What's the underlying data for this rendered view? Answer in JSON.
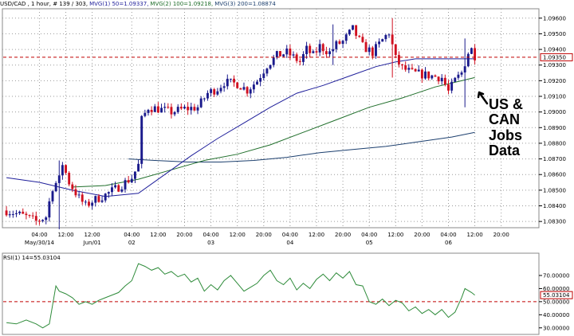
{
  "header": {
    "symbol": "USD/CAD , 1 hour, # 139 / 303,",
    "ma1": "MVG(1) 50=1.09337,",
    "ma2": "MVG(2) 100=1.09218,",
    "ma3": "MVG(3) 200=1.08874"
  },
  "colors": {
    "up": "#1a1a8c",
    "down": "#d01020",
    "ma1": "#1e1e9a",
    "ma2": "#1f6e2a",
    "ma3": "#1c3f6e",
    "rsi": "#2e8b3a",
    "marker": "#c00000",
    "grid": "#9a9a9a"
  },
  "annotation": {
    "lines": [
      "US &",
      "CAN",
      "Jobs",
      "Data"
    ]
  },
  "chart_data": [
    {
      "type": "candlestick",
      "y_ticks": [
        "1.09600",
        "1.09500",
        "1.09400",
        "1.09300",
        "1.09200",
        "1.09100",
        "1.09000",
        "1.08900",
        "1.08800",
        "1.08700",
        "1.08600",
        "1.08500",
        "1.08400",
        "1.08300"
      ],
      "ylim": [
        1.0826,
        1.0966
      ],
      "x_ticks": [
        {
          "bar": 10,
          "time": "04:00",
          "date": "May/30/14"
        },
        {
          "bar": 18,
          "time": "12:00",
          "date": ""
        },
        {
          "bar": 26,
          "time": "12:00",
          "date": "Jun/01"
        },
        {
          "bar": 38,
          "time": "04:00",
          "date": "02"
        },
        {
          "bar": 46,
          "time": "12:00",
          "date": ""
        },
        {
          "bar": 54,
          "time": "20:00",
          "date": ""
        },
        {
          "bar": 62,
          "time": "04:00",
          "date": "03"
        },
        {
          "bar": 70,
          "time": "12:00",
          "date": ""
        },
        {
          "bar": 78,
          "time": "20:00",
          "date": ""
        },
        {
          "bar": 86,
          "time": "04:00",
          "date": "04"
        },
        {
          "bar": 94,
          "time": "12:00",
          "date": ""
        },
        {
          "bar": 102,
          "time": "20:00",
          "date": ""
        },
        {
          "bar": 110,
          "time": "04:00",
          "date": "05"
        },
        {
          "bar": 118,
          "time": "12:00",
          "date": ""
        },
        {
          "bar": 126,
          "time": "20:00",
          "date": ""
        },
        {
          "bar": 134,
          "time": "04:00",
          "date": "06"
        },
        {
          "bar": 142,
          "time": "12:00",
          "date": ""
        },
        {
          "bar": 150,
          "time": "20:00",
          "date": ""
        }
      ],
      "current_price": 1.0935,
      "current_price_label": "1.09350",
      "close_path": [
        [
          0,
          1.0837
        ],
        [
          6,
          1.0833
        ],
        [
          9,
          1.083
        ],
        [
          12,
          1.0833
        ],
        [
          14,
          1.0852
        ],
        [
          16,
          1.0857
        ],
        [
          17,
          1.0867
        ],
        [
          19,
          1.0855
        ],
        [
          22,
          1.0845
        ],
        [
          24,
          1.084
        ],
        [
          26,
          1.0843
        ],
        [
          30,
          1.0847
        ],
        [
          34,
          1.0852
        ],
        [
          38,
          1.0858
        ],
        [
          40,
          1.0866
        ],
        [
          41,
          1.0895
        ],
        [
          43,
          1.0903
        ],
        [
          46,
          1.0902
        ],
        [
          50,
          1.09
        ],
        [
          54,
          1.0902
        ],
        [
          58,
          1.0903
        ],
        [
          61,
          1.0912
        ],
        [
          64,
          1.0915
        ],
        [
          66,
          1.0919
        ],
        [
          70,
          1.0918
        ],
        [
          73,
          1.0914
        ],
        [
          76,
          1.092
        ],
        [
          79,
          1.093
        ],
        [
          82,
          1.0936
        ],
        [
          85,
          1.0938
        ],
        [
          87,
          1.0935
        ],
        [
          89,
          1.0932
        ],
        [
          91,
          1.094
        ],
        [
          93,
          1.0936
        ],
        [
          95,
          1.0942
        ],
        [
          98,
          1.0938
        ],
        [
          100,
          1.0943
        ],
        [
          102,
          1.0945
        ],
        [
          105,
          1.0953
        ],
        [
          108,
          1.0942
        ],
        [
          111,
          1.0938
        ],
        [
          114,
          1.0946
        ],
        [
          116,
          1.0951
        ],
        [
          118,
          1.0934
        ],
        [
          120,
          1.0928
        ],
        [
          123,
          1.0925
        ],
        [
          126,
          1.0924
        ],
        [
          129,
          1.0923
        ],
        [
          132,
          1.0922
        ],
        [
          134,
          1.0913
        ],
        [
          136,
          1.092
        ],
        [
          138,
          1.0925
        ],
        [
          140,
          1.0938
        ],
        [
          141,
          1.094
        ],
        [
          142,
          1.0936
        ]
      ],
      "ma1_path": [
        [
          0,
          1.0858
        ],
        [
          10,
          1.0855
        ],
        [
          20,
          1.085
        ],
        [
          30,
          1.0846
        ],
        [
          40,
          1.0848
        ],
        [
          48,
          1.086
        ],
        [
          56,
          1.0872
        ],
        [
          64,
          1.0883
        ],
        [
          72,
          1.0893
        ],
        [
          80,
          1.0903
        ],
        [
          88,
          1.0912
        ],
        [
          96,
          1.0917
        ],
        [
          104,
          1.0923
        ],
        [
          112,
          1.0929
        ],
        [
          118,
          1.0932
        ],
        [
          124,
          1.0934
        ],
        [
          130,
          1.0934
        ],
        [
          136,
          1.0934
        ],
        [
          142,
          1.0934
        ]
      ],
      "ma2_path": [
        [
          20,
          1.0852
        ],
        [
          30,
          1.0853
        ],
        [
          40,
          1.0857
        ],
        [
          50,
          1.0863
        ],
        [
          60,
          1.0869
        ],
        [
          70,
          1.0873
        ],
        [
          80,
          1.0879
        ],
        [
          90,
          1.0887
        ],
        [
          100,
          1.0895
        ],
        [
          110,
          1.0903
        ],
        [
          120,
          1.0909
        ],
        [
          130,
          1.0916
        ],
        [
          138,
          1.092
        ],
        [
          142,
          1.0922
        ]
      ],
      "ma3_path": [
        [
          37,
          1.087
        ],
        [
          45,
          1.0869
        ],
        [
          55,
          1.0868
        ],
        [
          65,
          1.0868
        ],
        [
          75,
          1.0869
        ],
        [
          85,
          1.0871
        ],
        [
          95,
          1.0874
        ],
        [
          105,
          1.0876
        ],
        [
          115,
          1.0878
        ],
        [
          125,
          1.0881
        ],
        [
          135,
          1.0884
        ],
        [
          142,
          1.0887
        ]
      ],
      "spikes": [
        {
          "bar": 16,
          "high": 1.0869,
          "low": 1.0825
        },
        {
          "bar": 99,
          "high": 1.0956,
          "low": 1.093
        },
        {
          "bar": 117,
          "high": 1.096,
          "low": 1.0922
        },
        {
          "bar": 139,
          "high": 1.0947,
          "low": 1.0903
        }
      ]
    },
    {
      "type": "line",
      "name": "RSI(1) 14=55.03104",
      "y_ticks": [
        "70.00000",
        "60.00000",
        "50.00000",
        "40.00000",
        "30.00000"
      ],
      "ylim": [
        25,
        87
      ],
      "level": 50,
      "current_label": "55.03104",
      "values": [
        [
          0,
          34
        ],
        [
          3,
          33
        ],
        [
          6,
          36
        ],
        [
          9,
          33
        ],
        [
          11,
          30
        ],
        [
          13,
          33
        ],
        [
          15,
          62
        ],
        [
          16,
          58
        ],
        [
          18,
          56
        ],
        [
          20,
          53
        ],
        [
          22,
          48
        ],
        [
          24,
          50
        ],
        [
          26,
          48
        ],
        [
          28,
          51
        ],
        [
          30,
          53
        ],
        [
          32,
          55
        ],
        [
          34,
          57
        ],
        [
          36,
          62
        ],
        [
          38,
          66
        ],
        [
          40,
          79
        ],
        [
          42,
          77
        ],
        [
          44,
          74
        ],
        [
          46,
          76
        ],
        [
          48,
          71
        ],
        [
          50,
          73
        ],
        [
          52,
          69
        ],
        [
          54,
          71
        ],
        [
          56,
          65
        ],
        [
          58,
          68
        ],
        [
          60,
          58
        ],
        [
          62,
          63
        ],
        [
          64,
          59
        ],
        [
          66,
          66
        ],
        [
          68,
          70
        ],
        [
          70,
          64
        ],
        [
          72,
          58
        ],
        [
          74,
          61
        ],
        [
          76,
          64
        ],
        [
          78,
          70
        ],
        [
          80,
          74
        ],
        [
          82,
          66
        ],
        [
          84,
          63
        ],
        [
          86,
          68
        ],
        [
          88,
          59
        ],
        [
          90,
          64
        ],
        [
          92,
          60
        ],
        [
          94,
          67
        ],
        [
          96,
          71
        ],
        [
          98,
          66
        ],
        [
          100,
          72
        ],
        [
          102,
          68
        ],
        [
          104,
          73
        ],
        [
          106,
          63
        ],
        [
          108,
          62
        ],
        [
          110,
          50
        ],
        [
          112,
          48
        ],
        [
          114,
          52
        ],
        [
          116,
          47
        ],
        [
          118,
          51
        ],
        [
          120,
          49
        ],
        [
          122,
          43
        ],
        [
          124,
          46
        ],
        [
          126,
          41
        ],
        [
          128,
          44
        ],
        [
          130,
          40
        ],
        [
          132,
          44
        ],
        [
          134,
          38
        ],
        [
          136,
          42
        ],
        [
          138,
          53
        ],
        [
          139,
          60
        ],
        [
          141,
          57
        ],
        [
          142,
          55
        ]
      ]
    }
  ]
}
